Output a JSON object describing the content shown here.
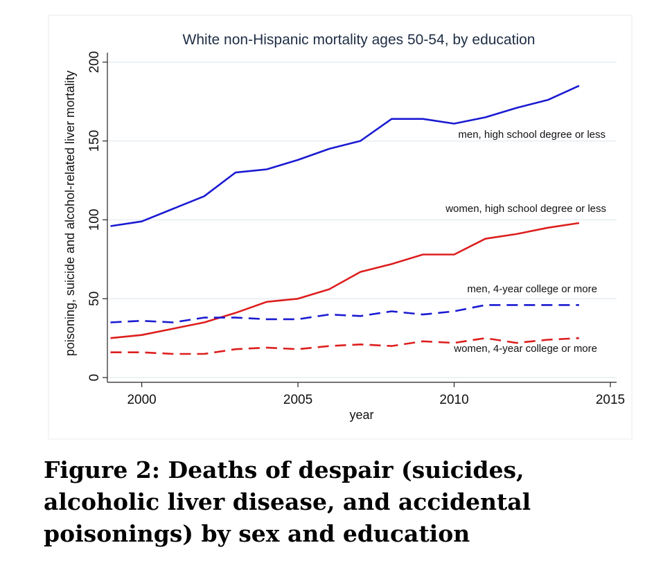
{
  "chart_data": {
    "type": "line",
    "title": "White non-Hispanic mortality ages 50-54, by education",
    "xlabel": "year",
    "ylabel": "poisoning, suicide and alcohol-related liver mortality",
    "xlim": [
      1998.9,
      2015.2
    ],
    "ylim": [
      -3,
      206
    ],
    "xticks": [
      2000,
      2005,
      2010,
      2015
    ],
    "yticks": [
      0,
      50,
      100,
      150,
      200
    ],
    "grid": "horizontal",
    "x": [
      1999,
      2000,
      2001,
      2002,
      2003,
      2004,
      2005,
      2006,
      2007,
      2008,
      2009,
      2010,
      2011,
      2012,
      2013,
      2014
    ],
    "series": [
      {
        "name": "men, high school degree or less",
        "color": "#1a1ad2",
        "dash": "solid",
        "values": [
          96,
          99,
          107,
          115,
          130,
          132,
          138,
          145,
          150,
          164,
          164,
          161,
          165,
          171,
          176,
          185
        ]
      },
      {
        "name": "women, high school degree or less",
        "color": "#dd1e1e",
        "dash": "solid",
        "values": [
          25,
          27,
          31,
          35,
          41,
          48,
          50,
          56,
          67,
          72,
          78,
          78,
          88,
          91,
          95,
          98
        ]
      },
      {
        "name": "men, 4-year college or more",
        "color": "#1a1ad2",
        "dash": "dashed",
        "values": [
          35,
          36,
          35,
          38,
          38,
          37,
          37,
          40,
          39,
          42,
          40,
          42,
          46,
          46,
          46,
          46
        ]
      },
      {
        "name": "women, 4-year college or more",
        "color": "#dd1e1e",
        "dash": "dashed",
        "values": [
          16,
          16,
          15,
          15,
          18,
          19,
          18,
          20,
          21,
          20,
          23,
          22,
          25,
          22,
          24,
          25
        ]
      }
    ]
  },
  "caption": "Figure 2: Deaths of despair (suicides, alcoholic liver disease, and accidental poisonings) by sex and education"
}
